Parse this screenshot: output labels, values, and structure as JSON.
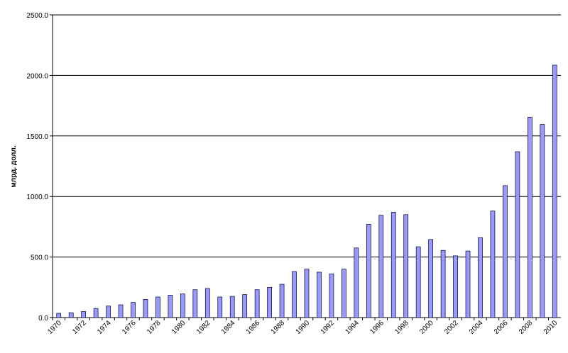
{
  "chart_data": {
    "type": "bar",
    "y_label": "млрд. долл.",
    "categories": [
      "1970",
      null,
      "1972",
      null,
      "1974",
      null,
      "1976",
      null,
      "1978",
      null,
      "1980",
      null,
      "1982",
      null,
      "1984",
      null,
      "1986",
      null,
      "1988",
      null,
      "1990",
      null,
      "1992",
      null,
      "1994",
      null,
      "1996",
      null,
      "1998",
      null,
      "2000",
      null,
      "2002",
      null,
      "2004",
      null,
      "2006",
      null,
      "2008",
      null,
      "2010"
    ],
    "values": [
      35,
      40,
      50,
      75,
      95,
      105,
      125,
      150,
      170,
      185,
      195,
      230,
      240,
      170,
      175,
      190,
      230,
      250,
      275,
      380,
      400,
      375,
      360,
      400,
      575,
      770,
      845,
      870,
      850,
      585,
      645,
      555,
      510,
      550,
      660,
      880,
      1090,
      1370,
      1655,
      1595,
      2085
    ],
    "color": "#9999ff",
    "ylim": [
      0,
      2500
    ],
    "yticks": [
      {
        "value": 0,
        "label": "0.0"
      },
      {
        "value": 500,
        "label": "500.0"
      },
      {
        "value": 1000,
        "label": "1000.0"
      },
      {
        "value": 1500,
        "label": "1500.0"
      },
      {
        "value": 2000,
        "label": "2000.0"
      },
      {
        "value": 2500,
        "label": "2500.0"
      }
    ],
    "grid": true
  }
}
